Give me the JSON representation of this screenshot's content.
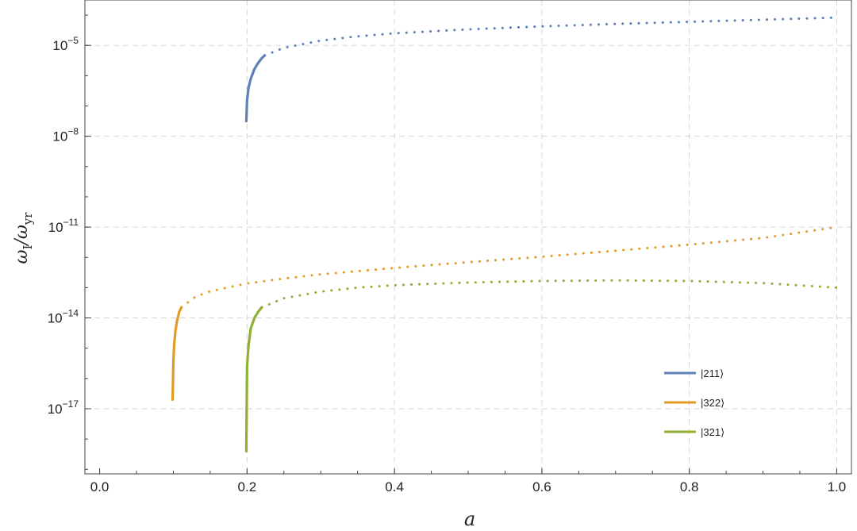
{
  "chart_data": {
    "type": "line",
    "xlabel": "a",
    "ylabel": "ω_I/ω_yr",
    "xlim": [
      -0.02,
      1.02
    ],
    "log_y": true,
    "ylim_log10": [
      -19.15,
      -3.5
    ],
    "grid": true,
    "legend_position": "bottom-right",
    "x_ticks": [
      {
        "value": 0.0,
        "label": "0.0"
      },
      {
        "value": 0.2,
        "label": "0.2"
      },
      {
        "value": 0.4,
        "label": "0.4"
      },
      {
        "value": 0.6,
        "label": "0.6"
      },
      {
        "value": 0.8,
        "label": "0.8"
      },
      {
        "value": 1.0,
        "label": "1.0"
      }
    ],
    "y_ticks": [
      {
        "exponent": -5,
        "base": "10",
        "sup": "−5"
      },
      {
        "exponent": -8,
        "base": "10",
        "sup": "−8"
      },
      {
        "exponent": -11,
        "base": "10",
        "sup": "−11"
      },
      {
        "exponent": -14,
        "base": "10",
        "sup": "−14"
      },
      {
        "exponent": -17,
        "base": "10",
        "sup": "−17"
      }
    ],
    "series": [
      {
        "name": "|211⟩",
        "color": "#5e81b5",
        "solid": {
          "x": [
            0.199,
            0.2,
            0.202,
            0.205,
            0.21,
            0.215,
            0.22,
            0.224
          ],
          "log10_y": [
            -7.5,
            -6.8,
            -6.4,
            -6.1,
            -5.78,
            -5.58,
            -5.42,
            -5.33
          ]
        },
        "dotted": {
          "x": [
            0.224,
            0.25,
            0.3,
            0.35,
            0.4,
            0.5,
            0.6,
            0.7,
            0.8,
            0.9,
            1.0
          ],
          "log10_y": [
            -5.33,
            -5.08,
            -4.84,
            -4.7,
            -4.6,
            -4.47,
            -4.37,
            -4.29,
            -4.22,
            -4.15,
            -4.08
          ]
        }
      },
      {
        "name": "|322⟩",
        "color": "#e19c24",
        "solid": {
          "x": [
            0.099,
            0.1,
            0.101,
            0.103,
            0.105,
            0.108,
            0.111
          ],
          "log10_y": [
            -16.7,
            -15.5,
            -14.9,
            -14.4,
            -14.1,
            -13.8,
            -13.65
          ]
        },
        "dotted": {
          "x": [
            0.111,
            0.13,
            0.15,
            0.2,
            0.25,
            0.3,
            0.4,
            0.5,
            0.6,
            0.7,
            0.8,
            0.9,
            1.0
          ],
          "log10_y": [
            -13.65,
            -13.3,
            -13.12,
            -12.86,
            -12.7,
            -12.56,
            -12.35,
            -12.16,
            -11.98,
            -11.78,
            -11.58,
            -11.36,
            -11.0
          ]
        }
      },
      {
        "name": "|321⟩",
        "color": "#8fb032",
        "solid": {
          "x": [
            0.199,
            0.2,
            0.202,
            0.205,
            0.21,
            0.215,
            0.22
          ],
          "log10_y": [
            -18.4,
            -15.6,
            -14.9,
            -14.35,
            -14.0,
            -13.8,
            -13.65
          ]
        },
        "dotted": {
          "x": [
            0.22,
            0.25,
            0.3,
            0.35,
            0.4,
            0.5,
            0.6,
            0.7,
            0.8,
            0.9,
            1.0
          ],
          "log10_y": [
            -13.65,
            -13.35,
            -13.13,
            -13.0,
            -12.92,
            -12.83,
            -12.78,
            -12.76,
            -12.78,
            -12.85,
            -13.0
          ]
        }
      }
    ]
  }
}
